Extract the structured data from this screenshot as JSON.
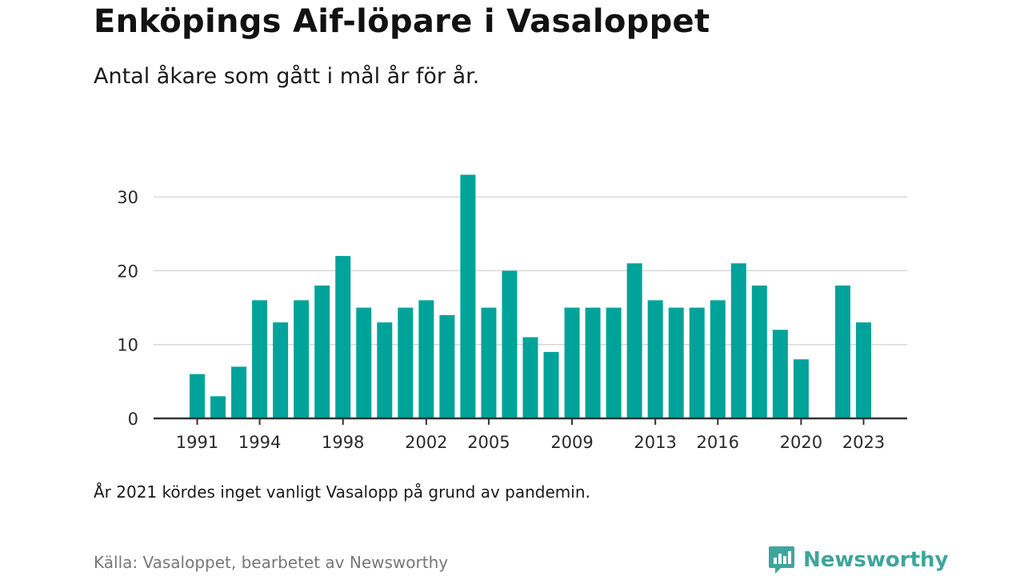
{
  "title": "Enköpings Aif-löpare i Vasaloppet",
  "subtitle": "Antal åkare som gått i mål år för år.",
  "note": "År 2021 kördes inget vanligt Vasalopp på grund av pandemin.",
  "source": "Källa: Vasaloppet, bearbetet av Newsworthy",
  "brand": {
    "name": "Newsworthy",
    "icon": "newsworthy-logo-icon"
  },
  "colors": {
    "bar": "#00a399",
    "grid": "#d9d9d9",
    "axis": "#333333",
    "brand": "#3fa59c"
  },
  "chart_data": {
    "type": "bar",
    "title": "Enköpings Aif-löpare i Vasaloppet",
    "subtitle": "Antal åkare som gått i mål år för år.",
    "categories": [
      1991,
      1992,
      1993,
      1994,
      1995,
      1996,
      1997,
      1998,
      1999,
      2000,
      2001,
      2002,
      2003,
      2004,
      2005,
      2006,
      2007,
      2008,
      2009,
      2010,
      2011,
      2012,
      2013,
      2014,
      2015,
      2016,
      2017,
      2018,
      2019,
      2020,
      2021,
      2022,
      2023
    ],
    "values": [
      6,
      3,
      7,
      16,
      13,
      16,
      18,
      22,
      15,
      13,
      15,
      16,
      14,
      33,
      15,
      20,
      11,
      9,
      15,
      15,
      15,
      21,
      16,
      15,
      15,
      16,
      21,
      18,
      12,
      8,
      null,
      18,
      13
    ],
    "x_tick_labels": [
      "1991",
      "1994",
      "1998",
      "2002",
      "2005",
      "2009",
      "2013",
      "2016",
      "2020",
      "2023"
    ],
    "y_ticks": [
      0,
      10,
      20,
      30
    ],
    "ylim": [
      0,
      35
    ],
    "xlabel": "",
    "ylabel": "",
    "grid": true,
    "legend": "none"
  }
}
